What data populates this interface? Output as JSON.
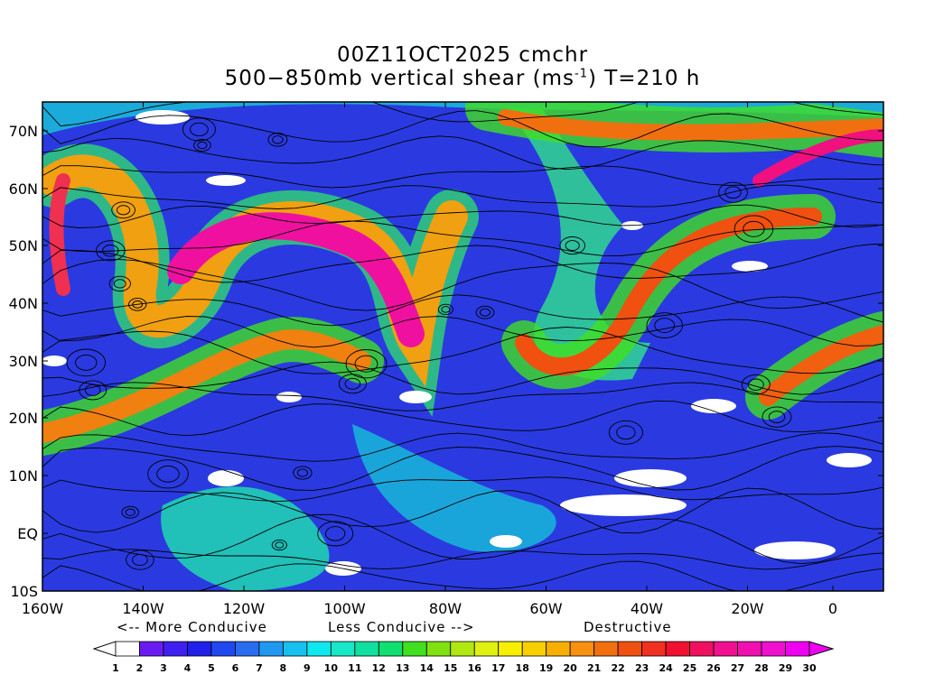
{
  "title": {
    "line1": "00Z11OCT2025 cmchr",
    "line2_prefix": "500−850mb vertical shear (ms",
    "line2_sup": "-1",
    "line2_suffix": ") T=210 h"
  },
  "map": {
    "lon_labels": [
      "160W",
      "140W",
      "120W",
      "100W",
      "80W",
      "60W",
      "40W",
      "20W",
      "0"
    ],
    "lat_labels": [
      "70N",
      "60N",
      "50N",
      "40N",
      "30N",
      "20N",
      "10N",
      "EQ",
      "10S"
    ],
    "colors": {
      "frame": "#000000",
      "streamline": "#000000",
      "background_field": "#2030d8"
    }
  },
  "legend": {
    "more_conducive": "<-- More Conducive",
    "less_conducive": "Less Conducive -->",
    "destructive": "Destructive",
    "tick_labels": [
      "1",
      "2",
      "3",
      "4",
      "5",
      "6",
      "7",
      "8",
      "9",
      "10",
      "11",
      "12",
      "13",
      "14",
      "15",
      "16",
      "17",
      "18",
      "19",
      "20",
      "21",
      "22",
      "23",
      "24",
      "25",
      "26",
      "27",
      "28",
      "29",
      "30"
    ],
    "colors": [
      "#ffffff",
      "#6a1cf0",
      "#4020f0",
      "#2020e8",
      "#2048f0",
      "#2a6cf0",
      "#2098f0",
      "#18c0f0",
      "#10e8f0",
      "#18e8c8",
      "#10e0a0",
      "#10e070",
      "#40e020",
      "#80e010",
      "#b0e810",
      "#e0f010",
      "#f8f000",
      "#f8d000",
      "#f8b000",
      "#f89010",
      "#f07010",
      "#f05010",
      "#f03020",
      "#f01030",
      "#f01060",
      "#f01090",
      "#f010b0",
      "#f010d0",
      "#f000f0"
    ]
  }
}
